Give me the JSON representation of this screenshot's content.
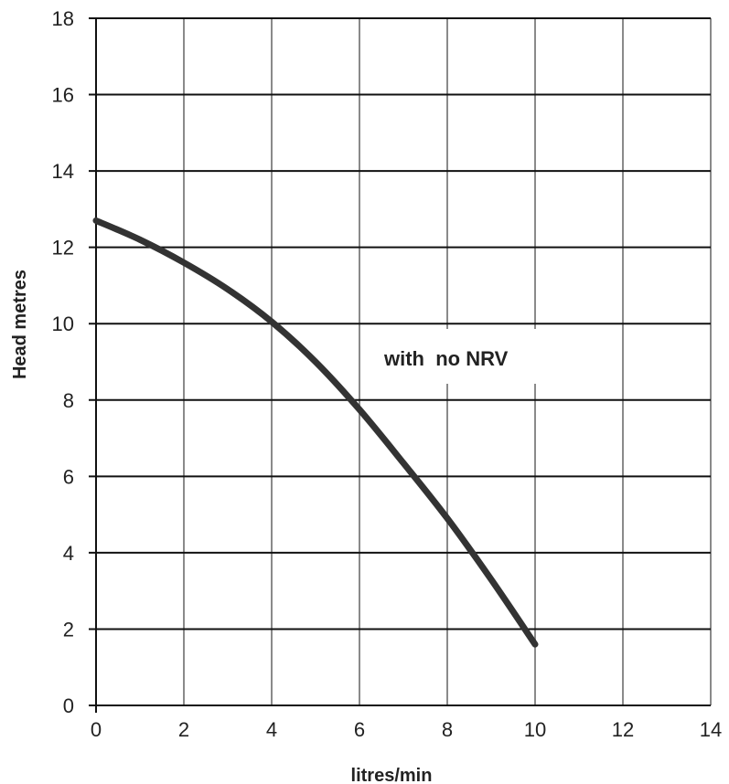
{
  "chart_data": {
    "type": "line",
    "xlabel": "litres/min",
    "ylabel": "Head metres",
    "xlim": [
      0,
      14
    ],
    "ylim": [
      0,
      18
    ],
    "xticks": [
      0,
      2,
      4,
      6,
      8,
      10,
      12,
      14
    ],
    "yticks": [
      0,
      2,
      4,
      6,
      8,
      10,
      12,
      14,
      16,
      18
    ],
    "grid": true,
    "annotation": "with  no NRV",
    "series": [
      {
        "color": "#333333",
        "points": [
          {
            "x": 0,
            "y": 12.7
          },
          {
            "x": 1,
            "y": 12.2
          },
          {
            "x": 2,
            "y": 11.6
          },
          {
            "x": 3,
            "y": 10.9
          },
          {
            "x": 4,
            "y": 10.05
          },
          {
            "x": 5,
            "y": 9.0
          },
          {
            "x": 6,
            "y": 7.75
          },
          {
            "x": 7,
            "y": 6.35
          },
          {
            "x": 8,
            "y": 4.9
          },
          {
            "x": 9,
            "y": 3.3
          },
          {
            "x": 10,
            "y": 1.6
          }
        ]
      }
    ]
  }
}
